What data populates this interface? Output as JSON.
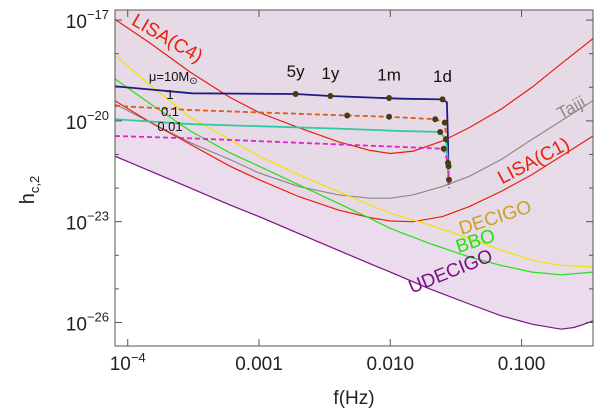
{
  "chart_data": {
    "type": "line",
    "title": "",
    "xlabel": "f(Hz)",
    "ylabel_base": "h",
    "ylabel_sub": "c,2",
    "x_scale": "log",
    "y_scale": "log",
    "xlim": [
      8e-05,
      0.35
    ],
    "ylim_log10": [
      -26.7,
      -16.7
    ],
    "x_ticks": [
      {
        "value": 0.0001,
        "label": "10",
        "sup": "−4"
      },
      {
        "value": 0.001,
        "label": "0.001",
        "sup": ""
      },
      {
        "value": 0.01,
        "label": "0.010",
        "sup": ""
      },
      {
        "value": 0.1,
        "label": "0.100",
        "sup": ""
      }
    ],
    "y_ticks": [
      {
        "exp": -17,
        "label": "10",
        "sup": "−17"
      },
      {
        "exp": -20,
        "label": "10",
        "sup": "−20"
      },
      {
        "exp": -23,
        "label": "10",
        "sup": "−23"
      },
      {
        "exp": -26,
        "label": "10",
        "sup": "−26"
      }
    ],
    "grid": false,
    "sensitivity_curves": [
      {
        "name": "LISA(C4)",
        "color": "#e8200c",
        "fill": "#b5793c",
        "fill_opacity": 0.78,
        "points": [
          [
            8e-05,
            -16.98
          ],
          [
            0.00015,
            -17.7
          ],
          [
            0.0003,
            -18.55
          ],
          [
            0.0006,
            -19.3
          ],
          [
            0.001,
            -19.75
          ],
          [
            0.002,
            -20.2
          ],
          [
            0.004,
            -20.62
          ],
          [
            0.007,
            -20.88
          ],
          [
            0.01,
            -20.97
          ],
          [
            0.015,
            -20.9
          ],
          [
            0.025,
            -20.6
          ],
          [
            0.04,
            -20.2
          ],
          [
            0.07,
            -19.65
          ],
          [
            0.12,
            -19.0
          ],
          [
            0.2,
            -18.3
          ],
          [
            0.35,
            -17.55
          ]
        ]
      },
      {
        "name": "Taiji",
        "color": "#8a8a8a",
        "fill": "#d4cfb8",
        "fill_opacity": 0.55,
        "points": [
          [
            8e-05,
            -19.5
          ],
          [
            0.00015,
            -20.05
          ],
          [
            0.0003,
            -20.65
          ],
          [
            0.0006,
            -21.15
          ],
          [
            0.001,
            -21.55
          ],
          [
            0.002,
            -21.95
          ],
          [
            0.004,
            -22.2
          ],
          [
            0.007,
            -22.3
          ],
          [
            0.01,
            -22.3
          ],
          [
            0.015,
            -22.2
          ],
          [
            0.025,
            -21.95
          ],
          [
            0.04,
            -21.65
          ],
          [
            0.07,
            -21.15
          ],
          [
            0.12,
            -20.55
          ],
          [
            0.2,
            -20.0
          ],
          [
            0.35,
            -19.4
          ]
        ]
      },
      {
        "name": "LISA(C1)",
        "color": "#e8200c",
        "fill": "#e79aa0",
        "fill_opacity": 0.6,
        "points": [
          [
            8e-05,
            -19.4
          ],
          [
            0.00015,
            -20.05
          ],
          [
            0.0003,
            -20.7
          ],
          [
            0.0006,
            -21.35
          ],
          [
            0.001,
            -21.75
          ],
          [
            0.002,
            -22.25
          ],
          [
            0.004,
            -22.65
          ],
          [
            0.007,
            -22.88
          ],
          [
            0.01,
            -22.98
          ],
          [
            0.015,
            -23.0
          ],
          [
            0.025,
            -22.85
          ],
          [
            0.04,
            -22.55
          ],
          [
            0.07,
            -22.1
          ],
          [
            0.12,
            -21.6
          ],
          [
            0.2,
            -21.05
          ],
          [
            0.35,
            -20.45
          ]
        ]
      },
      {
        "name": "DECIGO",
        "color": "#f2e300",
        "fill": "#dfeab2",
        "fill_opacity": 0.8,
        "points": [
          [
            8e-05,
            -18.05
          ],
          [
            0.00015,
            -18.95
          ],
          [
            0.0003,
            -19.9
          ],
          [
            0.0006,
            -20.55
          ],
          [
            0.001,
            -21.05
          ],
          [
            0.002,
            -21.6
          ],
          [
            0.004,
            -22.1
          ],
          [
            0.007,
            -22.5
          ],
          [
            0.01,
            -22.75
          ],
          [
            0.02,
            -23.1
          ],
          [
            0.04,
            -23.5
          ],
          [
            0.07,
            -23.85
          ],
          [
            0.12,
            -24.15
          ],
          [
            0.2,
            -24.3
          ],
          [
            0.35,
            -24.35
          ]
        ]
      },
      {
        "name": "BBO",
        "color": "#25e014",
        "fill": "#c8e6b5",
        "fill_opacity": 0.55,
        "points": [
          [
            8e-05,
            -18.75
          ],
          [
            0.00015,
            -19.5
          ],
          [
            0.0003,
            -20.3
          ],
          [
            0.0006,
            -20.95
          ],
          [
            0.001,
            -21.35
          ],
          [
            0.002,
            -21.9
          ],
          [
            0.004,
            -22.45
          ],
          [
            0.007,
            -22.9
          ],
          [
            0.01,
            -23.2
          ],
          [
            0.02,
            -23.65
          ],
          [
            0.04,
            -24.05
          ],
          [
            0.07,
            -24.3
          ],
          [
            0.12,
            -24.5
          ],
          [
            0.2,
            -24.58
          ],
          [
            0.35,
            -24.5
          ]
        ]
      },
      {
        "name": "UDECIGO",
        "color": "#7d0f84",
        "fill": "#e8d9ec",
        "fill_opacity": 0.92,
        "points": [
          [
            8e-05,
            -21.05
          ],
          [
            0.00015,
            -21.5
          ],
          [
            0.0003,
            -22.0
          ],
          [
            0.0006,
            -22.5
          ],
          [
            0.001,
            -22.85
          ],
          [
            0.002,
            -23.35
          ],
          [
            0.004,
            -23.85
          ],
          [
            0.007,
            -24.25
          ],
          [
            0.01,
            -24.5
          ],
          [
            0.02,
            -25.0
          ],
          [
            0.04,
            -25.45
          ],
          [
            0.07,
            -25.8
          ],
          [
            0.12,
            -26.05
          ],
          [
            0.2,
            -26.2
          ],
          [
            0.25,
            -26.15
          ],
          [
            0.3,
            -26.05
          ],
          [
            0.35,
            -25.95
          ]
        ]
      }
    ],
    "curve_labels": [
      {
        "text": "LISA(C4)",
        "color": "#e8200c",
        "x": 0.00019,
        "y": -17.7,
        "rotate": 30,
        "size": 19
      },
      {
        "text": "Taiji",
        "color": "#8a8a8a",
        "x": 0.25,
        "y": -19.75,
        "rotate": -28,
        "size": 17
      },
      {
        "text": "LISA(C1)",
        "color": "#e8200c",
        "x": 0.13,
        "y": -21.35,
        "rotate": -28,
        "size": 19
      },
      {
        "text": "DECIGO",
        "color": "#c9a227",
        "x": 0.065,
        "y": -23.05,
        "rotate": -18,
        "size": 19
      },
      {
        "text": "BBO",
        "color": "#25e014",
        "x": 0.046,
        "y": -23.75,
        "rotate": -18,
        "size": 19
      },
      {
        "text": "UDECIGO",
        "color": "#7d0f84",
        "x": 0.03,
        "y": -24.65,
        "rotate": -22,
        "size": 19
      }
    ],
    "series": [
      {
        "name": "μ=10M⊙",
        "mu_label": "μ=10M",
        "mu_sub": "⊙",
        "color": "#1e1a86",
        "dash": "",
        "x": [
          8e-05,
          0.00031,
          0.0019,
          0.0035,
          0.012,
          0.025,
          0.027,
          0.0275,
          0.0278
        ],
        "y": [
          -18.97,
          -19.18,
          -19.2,
          -19.26,
          -19.34,
          -19.36,
          -19.45,
          -20.6,
          -21.9
        ]
      },
      {
        "name": "1",
        "color": "#e05a16",
        "dash": "5,3",
        "x": [
          8e-05,
          0.00031,
          0.0047,
          0.0098,
          0.022,
          0.026,
          0.027,
          0.0278
        ],
        "y": [
          -19.55,
          -19.68,
          -19.84,
          -19.88,
          -19.95,
          -20.05,
          -20.75,
          -21.85
        ]
      },
      {
        "name": "0.1",
        "color": "#2fc9a6",
        "dash": "",
        "x": [
          8e-05,
          0.00031,
          0.004,
          0.012,
          0.024,
          0.0265,
          0.0278
        ],
        "y": [
          -19.95,
          -20.1,
          -20.23,
          -20.3,
          -20.33,
          -20.55,
          -21.5
        ]
      },
      {
        "name": "0.01",
        "color": "#e020d2",
        "dash": "5,3",
        "x": [
          8e-05,
          0.00031,
          0.004,
          0.013,
          0.0255,
          0.0275,
          0.028
        ],
        "y": [
          -20.45,
          -20.52,
          -20.7,
          -20.78,
          -20.83,
          -21.25,
          -22.0
        ]
      }
    ],
    "series_markers": [
      {
        "x": 0.0019,
        "y": -19.2
      },
      {
        "x": 0.0035,
        "y": -19.26
      },
      {
        "x": 0.0098,
        "y": -19.32
      },
      {
        "x": 0.025,
        "y": -19.36
      },
      {
        "x": 0.0047,
        "y": -19.84
      },
      {
        "x": 0.0098,
        "y": -19.88
      },
      {
        "x": 0.022,
        "y": -19.95
      },
      {
        "x": 0.026,
        "y": -20.05
      },
      {
        "x": 0.024,
        "y": -20.33
      },
      {
        "x": 0.0265,
        "y": -20.55
      },
      {
        "x": 0.0255,
        "y": -20.83
      },
      {
        "x": 0.0275,
        "y": -21.25
      },
      {
        "x": 0.0278,
        "y": -21.35
      },
      {
        "x": 0.028,
        "y": -21.75
      }
    ],
    "marker_color": "#4a3a12",
    "time_labels": [
      {
        "text": "5y",
        "x": 0.0019,
        "y": -18.7
      },
      {
        "text": "1y",
        "x": 0.0035,
        "y": -18.75
      },
      {
        "text": "1m",
        "x": 0.0098,
        "y": -18.8
      },
      {
        "text": "1d",
        "x": 0.025,
        "y": -18.85
      }
    ],
    "series_labels": [
      {
        "text": "1",
        "x": 0.00021,
        "y": -19.35
      },
      {
        "text": "0.1",
        "x": 0.00021,
        "y": -19.85
      },
      {
        "text": "0.01",
        "x": 0.00021,
        "y": -20.3
      }
    ],
    "mu_label_pos": {
      "x": 0.000145,
      "y": -18.82
    }
  }
}
